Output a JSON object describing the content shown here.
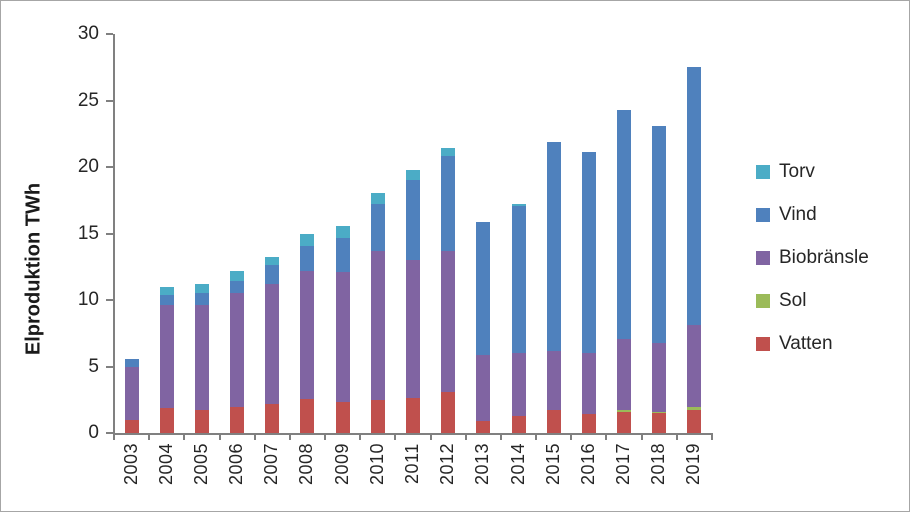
{
  "figure": {
    "background": "#ffffff",
    "border_color": "#a6a6a6",
    "axis_color": "#808080",
    "text_color": "#262626"
  },
  "chart_data": {
    "type": "bar",
    "stacked": true,
    "title": "",
    "xlabel": "",
    "ylabel": "Elproduktion TWh",
    "ylim": [
      0,
      30
    ],
    "yticks": [
      0,
      5,
      10,
      15,
      20,
      25,
      30
    ],
    "grid": false,
    "legend_position": "right",
    "categories": [
      "2003",
      "2004",
      "2005",
      "2006",
      "2007",
      "2008",
      "2009",
      "2010",
      "2011",
      "2012",
      "2013",
      "2014",
      "2015",
      "2016",
      "2017",
      "2018",
      "2019"
    ],
    "series": [
      {
        "name": "Vatten",
        "color": "#C0504D",
        "values": [
          0.95,
          1.9,
          1.75,
          1.95,
          2.2,
          2.55,
          2.35,
          2.5,
          2.65,
          3.1,
          0.9,
          1.3,
          1.7,
          1.45,
          1.6,
          1.5,
          1.7
        ]
      },
      {
        "name": "Sol",
        "color": "#9BBB59",
        "values": [
          0,
          0,
          0,
          0,
          0,
          0,
          0,
          0,
          0,
          0,
          0,
          0,
          0,
          0,
          0.1,
          0.1,
          0.25
        ]
      },
      {
        "name": "Biobränsle",
        "color": "#8064A2",
        "values": [
          4.0,
          7.7,
          7.85,
          8.55,
          9.0,
          9.65,
          9.75,
          11.2,
          10.35,
          10.6,
          5.0,
          4.75,
          4.5,
          4.6,
          5.35,
          5.2,
          6.15
        ]
      },
      {
        "name": "Vind",
        "color": "#4F81BD",
        "values": [
          0.6,
          0.8,
          0.9,
          0.95,
          1.4,
          1.85,
          2.55,
          3.5,
          6.05,
          7.1,
          9.95,
          11.0,
          15.7,
          15.05,
          17.25,
          16.3,
          19.4
        ]
      },
      {
        "name": "Torv",
        "color": "#4BACC6",
        "values": [
          0,
          0.6,
          0.7,
          0.75,
          0.6,
          0.95,
          0.9,
          0.85,
          0.7,
          0.6,
          0,
          0.15,
          0,
          0,
          0,
          0,
          0
        ]
      }
    ],
    "stack_order_note": "bottom to top: Vatten, Sol, Biobränsle, Vind, Torv",
    "totals": [
      5.55,
      11.0,
      11.2,
      12.2,
      13.2,
      15.0,
      15.55,
      18.05,
      19.75,
      21.4,
      15.85,
      17.2,
      21.9,
      21.1,
      24.3,
      23.1,
      27.5
    ],
    "legend": [
      {
        "label": "Torv",
        "color": "#4BACC6"
      },
      {
        "label": "Vind",
        "color": "#4F81BD"
      },
      {
        "label": "Biobränsle",
        "color": "#8064A2"
      },
      {
        "label": "Sol",
        "color": "#9BBB59"
      },
      {
        "label": "Vatten",
        "color": "#C0504D"
      }
    ]
  }
}
